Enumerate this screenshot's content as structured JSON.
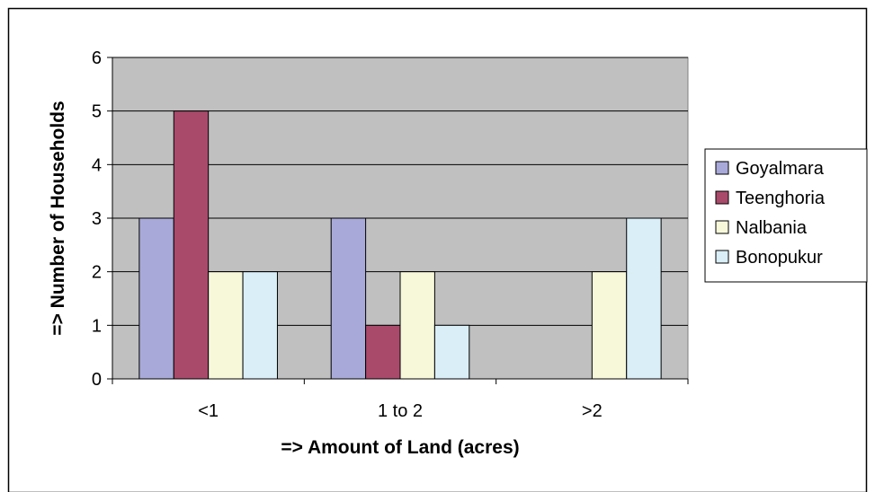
{
  "chart_data": {
    "type": "bar",
    "categories": [
      "<1",
      "1 to 2",
      ">2"
    ],
    "series": [
      {
        "name": "Goyalmara",
        "color": "#A9A9D9",
        "values": [
          3,
          3,
          0
        ]
      },
      {
        "name": "Teenghoria",
        "color": "#A94A6B",
        "values": [
          5,
          1,
          0
        ]
      },
      {
        "name": "Nalbania",
        "color": "#F7F7DA",
        "values": [
          2,
          2,
          2
        ]
      },
      {
        "name": "Bonopukur",
        "color": "#D9EEF7",
        "values": [
          2,
          1,
          3
        ]
      }
    ],
    "xlabel": "=> Amount of Land (acres)",
    "ylabel": "=> Number of Households",
    "ylim": [
      0,
      6
    ],
    "yticks": [
      0,
      1,
      2,
      3,
      4,
      5,
      6
    ],
    "grid": true,
    "plot_background": "#C0C0C0",
    "legend_position": "right"
  }
}
